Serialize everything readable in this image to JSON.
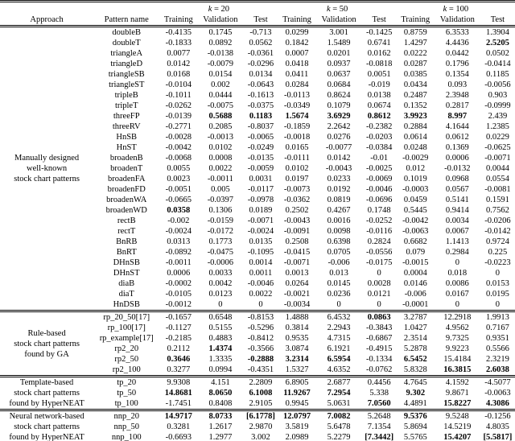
{
  "table": {
    "header": {
      "approach": "Approach",
      "pattern_name": "Pattern name",
      "k_groups": [
        "k = 20",
        "k = 50",
        "k = 100"
      ],
      "metric_labels": [
        "Training",
        "Validation",
        "Test"
      ]
    },
    "sections": [
      {
        "approach_lines": [
          "Manually designed",
          "well-known",
          "stock chart patterns"
        ],
        "rows": [
          {
            "name": "doubleB",
            "values": [
              "-0.4135",
              "0.1745",
              "-0.713",
              "0.0299",
              "3.001",
              "-0.1425",
              "0.8759",
              "6.3533",
              "1.3904"
            ],
            "bold": []
          },
          {
            "name": "doubleT",
            "values": [
              "-0.1833",
              "0.0892",
              "0.0562",
              "0.1842",
              "1.5489",
              "0.6741",
              "1.4297",
              "4.4436",
              "2.5205"
            ],
            "bold": [
              8
            ]
          },
          {
            "name": "triangleA",
            "values": [
              "0.0077",
              "-0.0138",
              "-0.0361",
              "0.0007",
              "0.0201",
              "0.0162",
              "0.0222",
              "0.0442",
              "0.0502"
            ],
            "bold": []
          },
          {
            "name": "triangleD",
            "values": [
              "0.0142",
              "-0.0079",
              "-0.0296",
              "0.0418",
              "0.0937",
              "-0.0818",
              "0.0287",
              "0.1796",
              "-0.0414"
            ],
            "bold": []
          },
          {
            "name": "triangleSB",
            "values": [
              "0.0168",
              "0.0154",
              "0.0134",
              "0.0411",
              "0.0637",
              "0.0051",
              "0.0385",
              "0.1354",
              "0.1185"
            ],
            "bold": []
          },
          {
            "name": "triangleST",
            "values": [
              "-0.0104",
              "0.002",
              "-0.0643",
              "0.0284",
              "0.0684",
              "-0.019",
              "0.0434",
              "0.093",
              "-0.0056"
            ],
            "bold": []
          },
          {
            "name": "tripleB",
            "values": [
              "-0.1011",
              "0.0444",
              "-0.1613",
              "-0.0113",
              "0.8624",
              "0.0138",
              "0.2487",
              "2.3948",
              "0.903"
            ],
            "bold": []
          },
          {
            "name": "tripleT",
            "values": [
              "-0.0262",
              "-0.0075",
              "-0.0375",
              "-0.0349",
              "0.1079",
              "0.0674",
              "0.1352",
              "0.2817",
              "-0.0999"
            ],
            "bold": []
          },
          {
            "name": "threeFP",
            "values": [
              "-0.0139",
              "0.5688",
              "0.1183",
              "1.5674",
              "3.6929",
              "0.8612",
              "3.9923",
              "8.997",
              "2.439"
            ],
            "bold": [
              1,
              2,
              3,
              4,
              5,
              6,
              7
            ]
          },
          {
            "name": "threeRV",
            "values": [
              "-0.2771",
              "0.2085",
              "-0.8037",
              "-0.1859",
              "2.2642",
              "-0.2382",
              "0.2884",
              "4.1644",
              "1.2385"
            ],
            "bold": []
          },
          {
            "name": "HnSB",
            "values": [
              "-0.0028",
              "-0.0013",
              "-0.0065",
              "-0.0018",
              "0.0276",
              "-0.0203",
              "0.0614",
              "0.0612",
              "0.0229"
            ],
            "bold": []
          },
          {
            "name": "HnST",
            "values": [
              "-0.0042",
              "0.0102",
              "-0.0249",
              "0.0165",
              "-0.0077",
              "-0.0384",
              "0.0248",
              "0.1369",
              "-0.0625"
            ],
            "bold": []
          },
          {
            "name": "broadenB",
            "values": [
              "-0.0068",
              "0.0008",
              "-0.0135",
              "-0.0111",
              "0.0142",
              "-0.01",
              "-0.0029",
              "0.0006",
              "-0.0071"
            ],
            "bold": []
          },
          {
            "name": "broadenT",
            "values": [
              "0.0055",
              "0.0022",
              "-0.0059",
              "0.0102",
              "-0.0043",
              "-0.0025",
              "0.012",
              "-0.0132",
              "0.0044"
            ],
            "bold": []
          },
          {
            "name": "broadenFA",
            "values": [
              "0.0023",
              "-0.0011",
              "0.0031",
              "0.0197",
              "0.0233",
              "-0.0069",
              "0.1019",
              "0.0968",
              "0.0554"
            ],
            "bold": []
          },
          {
            "name": "broadenFD",
            "values": [
              "-0.0051",
              "0.005",
              "-0.0117",
              "-0.0073",
              "0.0192",
              "-0.0046",
              "-0.0003",
              "0.0567",
              "-0.0081"
            ],
            "bold": []
          },
          {
            "name": "broadenWA",
            "values": [
              "-0.0665",
              "-0.0397",
              "-0.0978",
              "-0.0362",
              "0.0819",
              "-0.0696",
              "0.0459",
              "0.5141",
              "0.1591"
            ],
            "bold": []
          },
          {
            "name": "broadenWD",
            "values": [
              "0.0358",
              "0.1306",
              "0.0189",
              "0.2502",
              "0.4267",
              "0.1748",
              "0.5445",
              "0.9414",
              "0.7562"
            ],
            "bold": [
              0
            ]
          },
          {
            "name": "rectB",
            "values": [
              "-0.002",
              "-0.0159",
              "-0.0071",
              "-0.0043",
              "0.0016",
              "-0.0252",
              "-0.0042",
              "0.0034",
              "-0.0206"
            ],
            "bold": []
          },
          {
            "name": "rectT",
            "values": [
              "-0.0024",
              "-0.0172",
              "-0.0024",
              "-0.0091",
              "0.0098",
              "-0.0116",
              "-0.0063",
              "0.0067",
              "-0.0142"
            ],
            "bold": []
          },
          {
            "name": "BnRB",
            "values": [
              "0.0313",
              "0.1773",
              "0.0135",
              "0.2508",
              "0.6398",
              "0.2824",
              "0.6682",
              "1.1413",
              "0.9724"
            ],
            "bold": []
          },
          {
            "name": "BnRT",
            "values": [
              "-0.0892",
              "-0.0475",
              "-0.1095",
              "-0.0415",
              "0.0705",
              "-0.0556",
              "0.079",
              "0.2984",
              "0.225"
            ],
            "bold": []
          },
          {
            "name": "DHnSB",
            "values": [
              "-0.0011",
              "-0.0006",
              "0.0014",
              "-0.0071",
              "-0.006",
              "-0.0175",
              "-0.0015",
              "0",
              "-0.0223"
            ],
            "bold": []
          },
          {
            "name": "DHnST",
            "values": [
              "0.0006",
              "0.0033",
              "0.0011",
              "0.0013",
              "0.013",
              "0",
              "0.0004",
              "0.018",
              "0"
            ],
            "bold": []
          },
          {
            "name": "diaB",
            "values": [
              "-0.0002",
              "0.0042",
              "-0.0046",
              "0.0264",
              "0.0145",
              "0.0028",
              "0.0146",
              "0.0086",
              "0.0153"
            ],
            "bold": []
          },
          {
            "name": "diaT",
            "values": [
              "-0.0105",
              "0.0123",
              "0.0022",
              "-0.0021",
              "0.0236",
              "0.0121",
              "-0.006",
              "0.0167",
              "0.0195"
            ],
            "bold": []
          },
          {
            "name": "HnDSB",
            "values": [
              "-0.0012",
              "0",
              "0",
              "-0.0034",
              "0",
              "0",
              "-0.0001",
              "0",
              "0"
            ],
            "bold": []
          }
        ]
      },
      {
        "approach_lines": [
          "Rule-based",
          "stock chart patterns",
          "found by GA"
        ],
        "rows": [
          {
            "name": "rp_20_50[17]",
            "values": [
              "-0.1657",
              "0.6548",
              "-0.8153",
              "1.4888",
              "6.4532",
              "0.0863",
              "3.2787",
              "12.2918",
              "1.9913"
            ],
            "bold": [
              5
            ]
          },
          {
            "name": "rp_100[17]",
            "values": [
              "-0.1127",
              "0.5155",
              "-0.5296",
              "0.3814",
              "2.2943",
              "-0.3843",
              "1.0427",
              "4.9562",
              "0.7167"
            ],
            "bold": []
          },
          {
            "name": "rp_example[17]",
            "values": [
              "-0.2185",
              "0.4883",
              "-0.8412",
              "0.9535",
              "4.7315",
              "-0.6867",
              "2.3514",
              "9.7325",
              "0.9351"
            ],
            "bold": []
          },
          {
            "name": "rp2_20",
            "values": [
              "0.2112",
              "1.4374",
              "-0.3566",
              "3.0874",
              "6.1921",
              "-0.4915",
              "5.2878",
              "9.9223",
              "0.5566"
            ],
            "bold": [
              1
            ]
          },
          {
            "name": "rp2_50",
            "values": [
              "0.3646",
              "1.3335",
              "-0.2888",
              "3.2314",
              "6.5954",
              "-0.1334",
              "6.5452",
              "15.4184",
              "2.3219"
            ],
            "bold": [
              0,
              2,
              3,
              4,
              6
            ]
          },
          {
            "name": "rp2_100",
            "values": [
              "0.3277",
              "0.0994",
              "-0.4351",
              "1.5327",
              "4.6352",
              "-0.0762",
              "5.8328",
              "16.3815",
              "2.6038"
            ],
            "bold": [
              7,
              8
            ]
          }
        ]
      },
      {
        "approach_lines": [
          "Template-based",
          "stock chart patterns",
          "found by HyperNEAT"
        ],
        "rows": [
          {
            "name": "tp_20",
            "values": [
              "9.9308",
              "4.151",
              "2.2809",
              "6.8905",
              "2.6877",
              "0.4456",
              "4.7645",
              "4.1592",
              "-4.5077"
            ],
            "bold": []
          },
          {
            "name": "tp_50",
            "values": [
              "14.8681",
              "8.0650",
              "6.1008",
              "11.9267",
              "7.2954",
              "5.338",
              "9.302",
              "9.8671",
              "-0.0063"
            ],
            "bold": [
              0,
              1,
              2,
              3,
              4,
              6
            ]
          },
          {
            "name": "tp_100",
            "values": [
              "-1.7451",
              "0.8408",
              "2.9105",
              "0.9945",
              "5.0631",
              "7.0560",
              "4.4891",
              "15.8227",
              "4.3086"
            ],
            "bold": [
              5,
              7,
              8
            ]
          }
        ]
      },
      {
        "approach_lines": [
          "Neural network-based",
          "stock chart patterns",
          "found by HyperNEAT"
        ],
        "rows": [
          {
            "name": "nnp_20",
            "values": [
              "14.9717",
              "8.0733",
              "[6.1778]",
              "12.0797",
              "7.0082",
              "5.2648",
              "9.5376",
              "9.5248",
              "-0.1256"
            ],
            "bold": [
              0,
              1,
              2,
              3,
              4,
              6
            ]
          },
          {
            "name": "nnp_50",
            "values": [
              "0.3281",
              "1.2617",
              "2.9870",
              "3.5819",
              "5.6478",
              "7.1354",
              "5.8694",
              "14.5219",
              "4.8035"
            ],
            "bold": []
          },
          {
            "name": "nnp_100",
            "values": [
              "-0.6693",
              "1.2977",
              "3.002",
              "2.0989",
              "5.2279",
              "[7.3442]",
              "5.5765",
              "15.4207",
              "[5.5817]"
            ],
            "bold": [
              5,
              7,
              8
            ]
          }
        ]
      }
    ]
  }
}
